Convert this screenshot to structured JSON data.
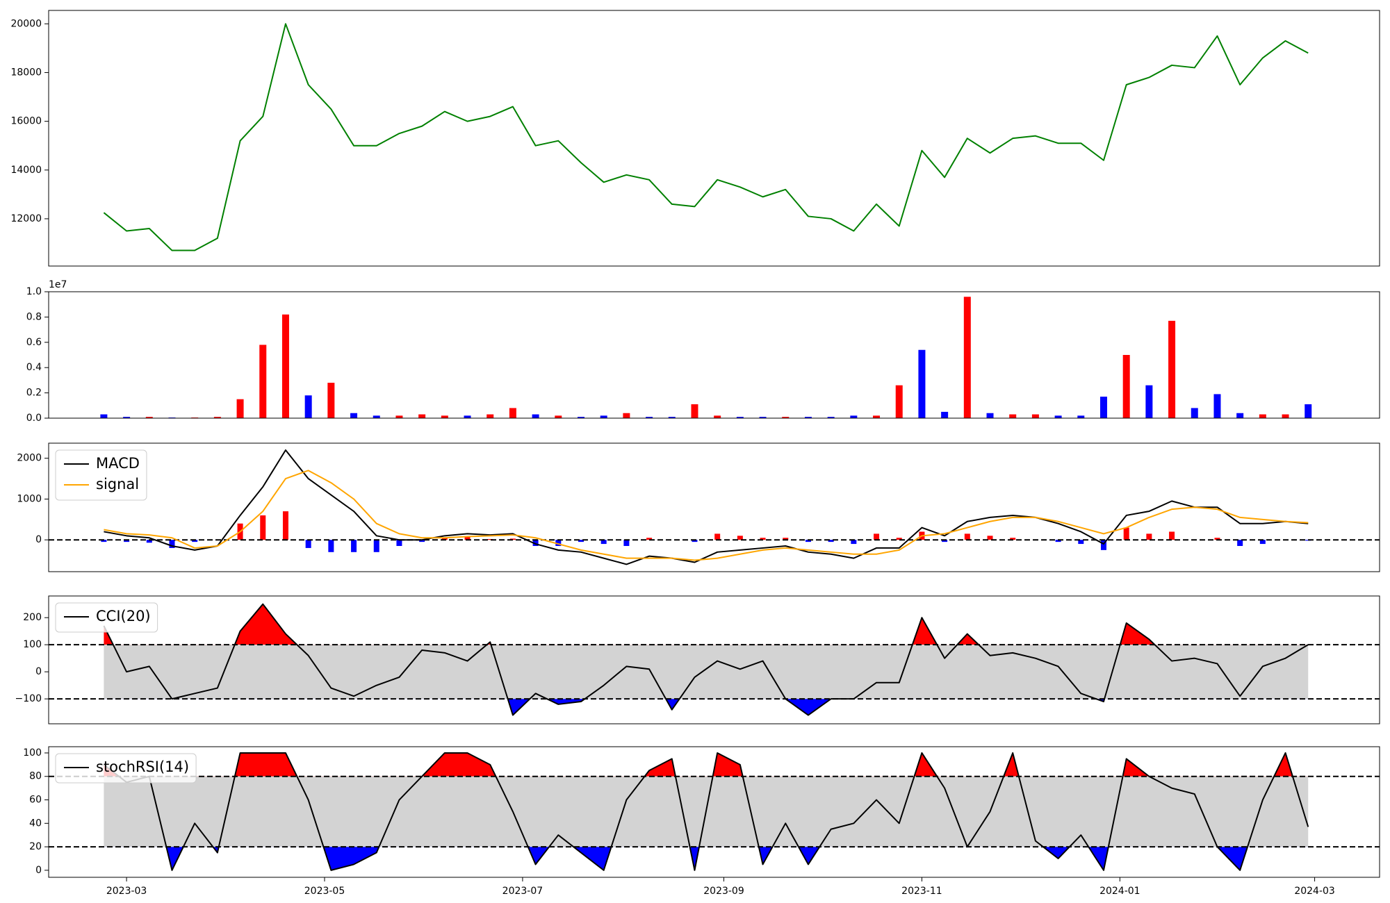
{
  "x_axis": {
    "x": [
      "2023-02-22",
      "2023-03-01",
      "2023-03-08",
      "2023-03-15",
      "2023-03-22",
      "2023-03-29",
      "2023-04-05",
      "2023-04-12",
      "2023-04-19",
      "2023-04-26",
      "2023-05-03",
      "2023-05-10",
      "2023-05-17",
      "2023-05-24",
      "2023-05-31",
      "2023-06-07",
      "2023-06-14",
      "2023-06-21",
      "2023-06-28",
      "2023-07-05",
      "2023-07-12",
      "2023-07-19",
      "2023-07-26",
      "2023-08-02",
      "2023-08-09",
      "2023-08-16",
      "2023-08-23",
      "2023-08-30",
      "2023-09-06",
      "2023-09-13",
      "2023-09-20",
      "2023-09-27",
      "2023-10-04",
      "2023-10-11",
      "2023-10-18",
      "2023-10-25",
      "2023-11-01",
      "2023-11-08",
      "2023-11-15",
      "2023-11-22",
      "2023-11-29",
      "2023-12-06",
      "2023-12-13",
      "2023-12-20",
      "2023-12-27",
      "2024-01-03",
      "2024-01-10",
      "2024-01-17",
      "2024-01-24",
      "2024-01-31",
      "2024-02-07",
      "2024-02-14",
      "2024-02-21",
      "2024-02-28"
    ],
    "xlim": [
      "2023-02-05",
      "2024-03-21"
    ],
    "xticks": [
      {
        "value": "2023-03-01",
        "label": "2023-03"
      },
      {
        "value": "2023-05-01",
        "label": "2023-05"
      },
      {
        "value": "2023-07-01",
        "label": "2023-07"
      },
      {
        "value": "2023-09-01",
        "label": "2023-09"
      },
      {
        "value": "2023-11-01",
        "label": "2023-11"
      },
      {
        "value": "2024-01-01",
        "label": "2024-01"
      },
      {
        "value": "2024-03-01",
        "label": "2024-03"
      }
    ]
  },
  "chart_data": [
    {
      "type": "line",
      "ylim": [
        10060,
        20550
      ],
      "yticks": [
        12000,
        14000,
        16000,
        18000,
        20000
      ],
      "series": [
        {
          "color": "#008000",
          "values": [
            12250,
            11500,
            11600,
            10700,
            10700,
            11200,
            15200,
            16200,
            20000,
            17500,
            16500,
            15000,
            15000,
            15500,
            15800,
            16400,
            16000,
            16200,
            16600,
            15000,
            15200,
            14300,
            13500,
            13800,
            13600,
            12600,
            12500,
            13600,
            13300,
            12900,
            13200,
            12100,
            12000,
            11500,
            12600,
            11700,
            14800,
            13700,
            15300,
            14700,
            15300,
            15400,
            15100,
            15100,
            14400,
            17500,
            17800,
            18300,
            18200,
            19500,
            17500,
            18600,
            19300,
            18800
          ]
        }
      ]
    },
    {
      "type": "bar",
      "ylim": [
        0,
        10000000
      ],
      "offset_label": "1e7",
      "yticks": [
        {
          "value": 0,
          "label": "0.0"
        },
        {
          "value": 2000000,
          "label": "0.2"
        },
        {
          "value": 4000000,
          "label": "0.4"
        },
        {
          "value": 6000000,
          "label": "0.6"
        },
        {
          "value": 8000000,
          "label": "0.8"
        },
        {
          "value": 10000000,
          "label": "1.0"
        }
      ],
      "values": [
        300000,
        100000,
        100000,
        50000,
        50000,
        100000,
        1500000,
        5800000,
        8200000,
        1800000,
        2800000,
        400000,
        200000,
        200000,
        300000,
        200000,
        200000,
        300000,
        800000,
        300000,
        200000,
        100000,
        200000,
        400000,
        100000,
        100000,
        1100000,
        200000,
        100000,
        100000,
        100000,
        100000,
        100000,
        200000,
        200000,
        2600000,
        5400000,
        500000,
        9600000,
        400000,
        300000,
        300000,
        200000,
        200000,
        1700000,
        5000000,
        2600000,
        7700000,
        800000,
        1900000,
        400000,
        300000,
        300000,
        1100000
      ],
      "colors": [
        "#0000ff",
        "#0000ff",
        "#ff0000",
        "#0000ff",
        "#ff0000",
        "#ff0000",
        "#ff0000",
        "#ff0000",
        "#ff0000",
        "#0000ff",
        "#ff0000",
        "#0000ff",
        "#0000ff",
        "#ff0000",
        "#ff0000",
        "#ff0000",
        "#0000ff",
        "#ff0000",
        "#ff0000",
        "#0000ff",
        "#ff0000",
        "#0000ff",
        "#0000ff",
        "#ff0000",
        "#0000ff",
        "#0000ff",
        "#ff0000",
        "#ff0000",
        "#0000ff",
        "#0000ff",
        "#ff0000",
        "#0000ff",
        "#0000ff",
        "#0000ff",
        "#ff0000",
        "#ff0000",
        "#0000ff",
        "#0000ff",
        "#ff0000",
        "#0000ff",
        "#ff0000",
        "#ff0000",
        "#0000ff",
        "#0000ff",
        "#0000ff",
        "#ff0000",
        "#0000ff",
        "#ff0000",
        "#0000ff",
        "#0000ff",
        "#0000ff",
        "#ff0000",
        "#ff0000",
        "#0000ff"
      ]
    },
    {
      "type": "combo",
      "ylim": [
        -780,
        2370
      ],
      "yticks": [
        0,
        1000,
        2000
      ],
      "hline": 0,
      "pos_color": "#ff0000",
      "neg_color": "#0000ff",
      "series": [
        {
          "name": "MACD",
          "type": "line",
          "color": "#000000",
          "values": [
            200,
            100,
            50,
            -150,
            -250,
            -150,
            600,
            1300,
            2200,
            1500,
            1100,
            700,
            100,
            0,
            0,
            100,
            150,
            120,
            150,
            -100,
            -250,
            -300,
            -450,
            -600,
            -400,
            -450,
            -550,
            -300,
            -250,
            -200,
            -150,
            -300,
            -350,
            -450,
            -200,
            -200,
            300,
            100,
            450,
            550,
            600,
            550,
            400,
            200,
            -100,
            600,
            700,
            950,
            800,
            800,
            400,
            400,
            450,
            400
          ]
        },
        {
          "name": "signal",
          "type": "line",
          "color": "#ffa500",
          "values": [
            250,
            150,
            120,
            50,
            -200,
            -150,
            200,
            700,
            1500,
            1700,
            1400,
            1000,
            400,
            150,
            50,
            50,
            80,
            100,
            120,
            50,
            -100,
            -250,
            -350,
            -450,
            -450,
            -450,
            -500,
            -450,
            -350,
            -250,
            -200,
            -250,
            -300,
            -350,
            -350,
            -250,
            100,
            150,
            300,
            450,
            550,
            550,
            450,
            300,
            150,
            300,
            550,
            750,
            800,
            750,
            550,
            500,
            450,
            420
          ]
        },
        {
          "type": "bar",
          "values": [
            -50,
            -50,
            -70,
            -200,
            -50,
            0,
            400,
            600,
            700,
            -200,
            -300,
            -300,
            -300,
            -150,
            -50,
            50,
            70,
            20,
            30,
            -150,
            -150,
            -50,
            -100,
            -150,
            50,
            0,
            -50,
            150,
            100,
            50,
            50,
            -50,
            -50,
            -100,
            150,
            50,
            200,
            -50,
            150,
            100,
            50,
            0,
            -50,
            -100,
            -250,
            300,
            150,
            200,
            0,
            50,
            -150,
            -100,
            0,
            -20
          ]
        }
      ]
    },
    {
      "type": "oscillator",
      "ylim": [
        -192,
        280
      ],
      "yticks": [
        {
          "value": -100,
          "label": "−100"
        },
        0,
        100,
        200
      ],
      "thresholds": [
        -100,
        100
      ],
      "band_color": "#d3d3d3",
      "above_color": "#ff0000",
      "below_color": "#0000ff",
      "series": [
        {
          "name": "CCI(20)",
          "color": "#000000",
          "values": [
            170,
            0,
            20,
            -100,
            -80,
            -60,
            150,
            250,
            140,
            60,
            -60,
            -90,
            -50,
            -20,
            80,
            70,
            40,
            110,
            -160,
            -80,
            -120,
            -110,
            -50,
            20,
            10,
            -140,
            -20,
            40,
            10,
            40,
            -100,
            -160,
            -100,
            -100,
            -40,
            -40,
            200,
            50,
            140,
            60,
            70,
            50,
            20,
            -80,
            -110,
            180,
            120,
            40,
            50,
            30,
            -90,
            20,
            50,
            100
          ]
        }
      ]
    },
    {
      "type": "oscillator",
      "ylim": [
        -6,
        105.3
      ],
      "yticks": [
        0,
        20,
        40,
        60,
        80,
        100
      ],
      "thresholds": [
        20,
        80
      ],
      "band_color": "#d3d3d3",
      "above_color": "#ff0000",
      "below_color": "#0000ff",
      "series": [
        {
          "name": "stochRSI(14)",
          "color": "#000000",
          "values": [
            90,
            75,
            80,
            0,
            40,
            15,
            100,
            100,
            100,
            60,
            0,
            5,
            15,
            60,
            80,
            100,
            100,
            90,
            50,
            5,
            30,
            15,
            0,
            60,
            85,
            95,
            0,
            100,
            90,
            5,
            40,
            5,
            35,
            40,
            60,
            40,
            100,
            70,
            20,
            50,
            100,
            25,
            10,
            30,
            0,
            95,
            80,
            70,
            65,
            20,
            0,
            60,
            100,
            37
          ]
        }
      ]
    }
  ]
}
